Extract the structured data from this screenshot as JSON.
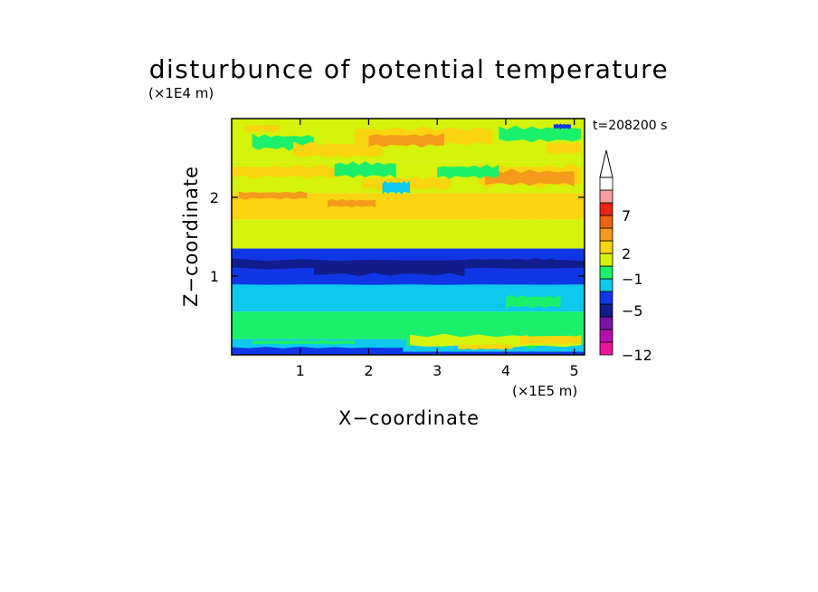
{
  "chart_data": {
    "type": "heatmap",
    "title": "disturbunce of potential temperature",
    "xlabel": "X−coordinate",
    "ylabel": "Z−coordinate",
    "x_unit": "(×1E5 m)",
    "y_unit": "(×1E4 m)",
    "time_label": "t=208200 s",
    "xlim": [
      0,
      5.15
    ],
    "ylim": [
      0,
      3.0
    ],
    "x_ticks": [
      {
        "value": 1,
        "label": "1"
      },
      {
        "value": 2,
        "label": "2"
      },
      {
        "value": 3,
        "label": "3"
      },
      {
        "value": 4,
        "label": "4"
      },
      {
        "value": 5,
        "label": "5"
      }
    ],
    "y_ticks": [
      {
        "value": 1,
        "label": "1"
      },
      {
        "value": 2,
        "label": "2"
      }
    ],
    "colorbar": {
      "extend_top": true,
      "levels": [
        {
          "color": "#e8179a"
        },
        {
          "color": "#b40eac"
        },
        {
          "color": "#7a12a8"
        },
        {
          "color": "#131c8c"
        },
        {
          "color": "#1037e6"
        },
        {
          "color": "#0ec8ee"
        },
        {
          "color": "#1cf06a"
        },
        {
          "color": "#d4f20a"
        },
        {
          "color": "#f9d40f"
        },
        {
          "color": "#f59a1a"
        },
        {
          "color": "#ef6413"
        },
        {
          "color": "#e82418"
        },
        {
          "color": "#f4a0a0"
        },
        {
          "color": "#ffffff"
        }
      ],
      "labels": [
        {
          "text": "−12",
          "boundary": 0
        },
        {
          "text": "−5",
          "boundary": 3.5
        },
        {
          "text": "−1",
          "boundary": 6
        },
        {
          "text": "2",
          "boundary": 8
        },
        {
          "text": "7",
          "boundary": 11
        }
      ]
    },
    "bands": [
      {
        "z0": 0.0,
        "z1": 0.04,
        "color": "#1037e6"
      },
      {
        "z0": 0.04,
        "z1": 0.2,
        "color": "#0ec8ee"
      },
      {
        "z0": 0.2,
        "z1": 0.55,
        "color": "#1cf06a"
      },
      {
        "z0": 0.55,
        "z1": 0.9,
        "color": "#0ec8ee"
      },
      {
        "z0": 0.9,
        "z1": 1.35,
        "color": "#1037e6"
      },
      {
        "z0": 1.35,
        "z1": 1.72,
        "color": "#d4f20a"
      },
      {
        "z0": 1.72,
        "z1": 2.05,
        "color": "#f9d40f"
      },
      {
        "z0": 2.05,
        "z1": 2.45,
        "color": "#d4f20a"
      },
      {
        "z0": 2.45,
        "z1": 3.0,
        "color": "#d4f20a"
      }
    ],
    "patches": [
      {
        "x": 0.0,
        "z": 1.05,
        "w": 5.15,
        "h": 0.2,
        "color": "#131c8c"
      },
      {
        "x": 1.2,
        "z": 0.95,
        "w": 2.2,
        "h": 0.3,
        "color": "#131c8c"
      },
      {
        "x": 3.4,
        "z": 1.1,
        "w": 1.3,
        "h": 0.15,
        "color": "#131c8c"
      },
      {
        "x": 0.0,
        "z": 0.88,
        "w": 5.15,
        "h": 0.05,
        "color": "#1037e6"
      },
      {
        "x": 0.2,
        "z": 0.3,
        "w": 2.3,
        "h": 0.22,
        "color": "#1cf06a"
      },
      {
        "x": 2.55,
        "z": 0.0,
        "w": 2.6,
        "h": 0.55,
        "color": "#1cf06a"
      },
      {
        "x": 2.6,
        "z": 0.05,
        "w": 2.5,
        "h": 0.25,
        "color": "#d4f20a"
      },
      {
        "x": 3.3,
        "z": 0.05,
        "w": 0.8,
        "h": 0.1,
        "color": "#f9d40f"
      },
      {
        "x": 4.2,
        "z": 0.1,
        "w": 0.9,
        "h": 0.18,
        "color": "#f9d40f"
      },
      {
        "x": 0.0,
        "z": 0.0,
        "w": 2.5,
        "h": 0.12,
        "color": "#1037e6"
      },
      {
        "x": 0.3,
        "z": 0.12,
        "w": 1.5,
        "h": 0.08,
        "color": "#1cf06a"
      },
      {
        "x": 0.0,
        "z": 1.4,
        "w": 0.9,
        "h": 0.3,
        "color": "#d4f20a"
      },
      {
        "x": 2.4,
        "z": 1.38,
        "w": 1.2,
        "h": 0.32,
        "color": "#d4f20a"
      },
      {
        "x": 0.8,
        "z": 1.75,
        "w": 1.0,
        "h": 0.2,
        "color": "#f9d40f"
      },
      {
        "x": 1.9,
        "z": 1.75,
        "w": 1.2,
        "h": 0.25,
        "color": "#f9d40f"
      },
      {
        "x": 3.5,
        "z": 1.7,
        "w": 1.3,
        "h": 0.25,
        "color": "#f9d40f"
      },
      {
        "x": 0.1,
        "z": 1.95,
        "w": 1.0,
        "h": 0.15,
        "color": "#f59a1a"
      },
      {
        "x": 1.4,
        "z": 1.85,
        "w": 0.7,
        "h": 0.15,
        "color": "#f59a1a"
      },
      {
        "x": 1.9,
        "z": 2.05,
        "w": 1.3,
        "h": 0.25,
        "color": "#f9d40f"
      },
      {
        "x": 3.6,
        "z": 2.05,
        "w": 1.5,
        "h": 0.45,
        "color": "#f9d40f"
      },
      {
        "x": 3.7,
        "z": 2.1,
        "w": 1.3,
        "h": 0.3,
        "color": "#f59a1a"
      },
      {
        "x": 0.0,
        "z": 2.2,
        "w": 1.6,
        "h": 0.25,
        "color": "#f9d40f"
      },
      {
        "x": 0.3,
        "z": 2.55,
        "w": 0.9,
        "h": 0.3,
        "color": "#1cf06a"
      },
      {
        "x": 1.5,
        "z": 2.2,
        "w": 0.9,
        "h": 0.3,
        "color": "#1cf06a"
      },
      {
        "x": 3.0,
        "z": 2.2,
        "w": 0.9,
        "h": 0.25,
        "color": "#1cf06a"
      },
      {
        "x": 0.9,
        "z": 2.45,
        "w": 1.3,
        "h": 0.3,
        "color": "#f9d40f"
      },
      {
        "x": 1.8,
        "z": 2.6,
        "w": 2.0,
        "h": 0.35,
        "color": "#f9d40f"
      },
      {
        "x": 2.0,
        "z": 2.6,
        "w": 1.1,
        "h": 0.25,
        "color": "#f59a1a"
      },
      {
        "x": 3.9,
        "z": 2.65,
        "w": 1.2,
        "h": 0.3,
        "color": "#1cf06a"
      },
      {
        "x": 4.6,
        "z": 2.5,
        "w": 0.5,
        "h": 0.25,
        "color": "#f9d40f"
      },
      {
        "x": 2.2,
        "z": 2.0,
        "w": 0.4,
        "h": 0.25,
        "color": "#0ec8ee"
      },
      {
        "x": 4.7,
        "z": 2.85,
        "w": 0.25,
        "h": 0.1,
        "color": "#1037e6"
      },
      {
        "x": 0.2,
        "z": 2.8,
        "w": 0.5,
        "h": 0.15,
        "color": "#f9d40f"
      },
      {
        "x": 4.0,
        "z": 0.55,
        "w": 0.8,
        "h": 0.25,
        "color": "#1cf06a"
      }
    ]
  }
}
